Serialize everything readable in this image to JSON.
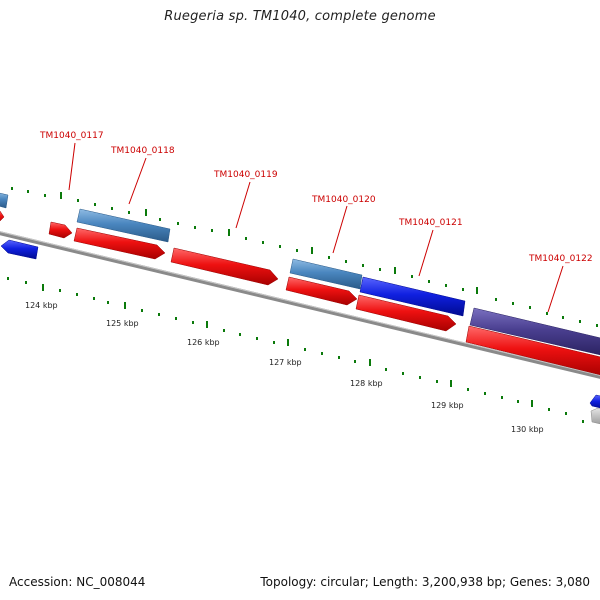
{
  "title": "Ruegeria sp. TM1040, complete genome",
  "footer": {
    "accession": "Accession: NC_008044",
    "stats": "Topology: circular; Length: 3,200,938 bp; Genes: 3,080"
  },
  "colors": {
    "red_gene": "#ee1111",
    "steel_gene": "#4a86bf",
    "blue_gene": "#1020e0",
    "purple_gene": "#4a3f90",
    "gray_gene": "#bdbdbd",
    "backbone": "#8a8a8a",
    "tick": "#0b7a0b",
    "label": "#cc0000"
  },
  "scale_labels": [
    "124 kbp",
    "125 kbp",
    "126 kbp",
    "127 kbp",
    "128 kbp",
    "129 kbp",
    "130 kbp"
  ],
  "gene_labels": [
    "TM1040_0117",
    "TM1040_0118",
    "TM1040_0119",
    "TM1040_0120",
    "TM1040_0121",
    "TM1040_0122"
  ]
}
